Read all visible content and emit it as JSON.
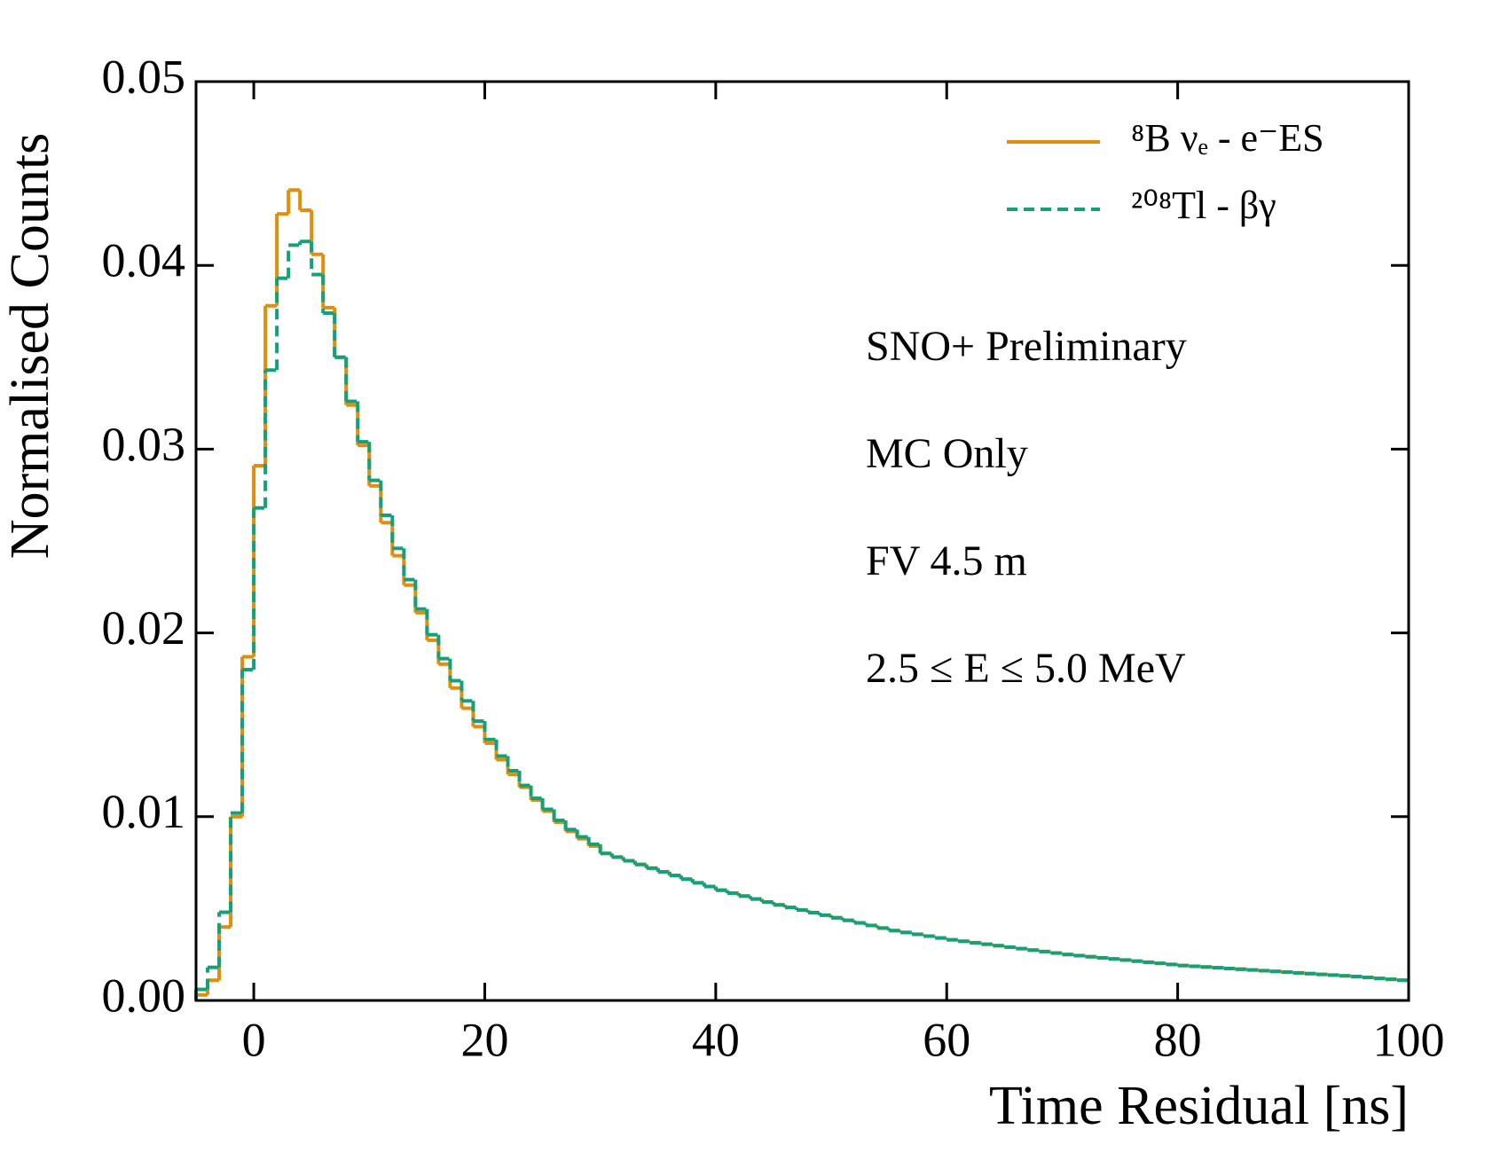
{
  "chart_data": {
    "type": "histogram",
    "xlabel": "Time Residual [ns]",
    "ylabel": "Normalised Counts",
    "annotations": [
      "SNO+ Preliminary",
      "MC Only",
      "FV 4.5 m",
      "2.5 ≤ E ≤ 5.0 MeV"
    ],
    "legend": "upper right",
    "xlim": [
      -5,
      100
    ],
    "ylim": [
      0,
      0.05
    ],
    "xticks": [
      0,
      20,
      40,
      60,
      80,
      100
    ],
    "yticks": [
      {
        "value": 0,
        "label": "0.00"
      },
      {
        "value": 0.01,
        "label": "0.01"
      },
      {
        "value": 0.02,
        "label": "0.02"
      },
      {
        "value": 0.03,
        "label": "0.03"
      },
      {
        "value": 0.04,
        "label": "0.04"
      },
      {
        "value": 0.05,
        "label": "0.05"
      }
    ],
    "bins": [
      -5,
      -4,
      -3,
      -2,
      -1,
      0,
      1,
      2,
      3,
      4,
      5,
      6,
      7,
      8,
      9,
      10,
      11,
      12,
      13,
      14,
      15,
      16,
      17,
      18,
      19,
      20,
      21,
      22,
      23,
      24,
      25,
      26,
      27,
      28,
      29,
      30,
      31,
      32,
      33,
      34,
      35,
      36,
      37,
      38,
      39,
      40,
      41,
      42,
      43,
      44,
      45,
      46,
      47,
      48,
      49,
      50,
      51,
      52,
      53,
      54,
      55,
      56,
      57,
      58,
      59,
      60,
      61,
      62,
      63,
      64,
      65,
      66,
      67,
      68,
      69,
      70,
      71,
      72,
      73,
      74,
      75,
      76,
      77,
      78,
      79,
      80,
      81,
      82,
      83,
      84,
      85,
      86,
      87,
      88,
      89,
      90,
      91,
      92,
      93,
      94,
      95,
      96,
      97,
      98,
      99,
      100
    ],
    "series": [
      {
        "name": "⁸B νₑ - e⁻ES",
        "color": "#e08f0c",
        "dashed": false,
        "values": [
          0.0003,
          0.0011,
          0.004,
          0.01,
          0.0187,
          0.0291,
          0.0378,
          0.0428,
          0.0441,
          0.043,
          0.0406,
          0.0377,
          0.035,
          0.0324,
          0.0302,
          0.028,
          0.026,
          0.0242,
          0.0226,
          0.0211,
          0.0196,
          0.0183,
          0.017,
          0.0159,
          0.0149,
          0.014,
          0.0131,
          0.0123,
          0.0116,
          0.0109,
          0.0103,
          0.0097,
          0.0092,
          0.0088,
          0.0084,
          0.008,
          0.0078,
          0.0076,
          0.0074,
          0.0072,
          0.007,
          0.0068,
          0.0066,
          0.0064,
          0.0062,
          0.006,
          0.00584,
          0.00568,
          0.00552,
          0.00536,
          0.0052,
          0.00506,
          0.00492,
          0.00478,
          0.00464,
          0.0045,
          0.00436,
          0.00422,
          0.00408,
          0.00394,
          0.0038,
          0.0037,
          0.0036,
          0.0035,
          0.0034,
          0.0033,
          0.00322,
          0.00314,
          0.00306,
          0.00298,
          0.0029,
          0.00282,
          0.00274,
          0.00266,
          0.00258,
          0.0025,
          0.00244,
          0.00238,
          0.00232,
          0.00226,
          0.0022,
          0.00214,
          0.00208,
          0.00202,
          0.00196,
          0.0019,
          0.00186,
          0.00182,
          0.00178,
          0.00174,
          0.0017,
          0.00166,
          0.00162,
          0.00158,
          0.00154,
          0.0015,
          0.00146,
          0.00142,
          0.00138,
          0.00134,
          0.0013,
          0.00125,
          0.0012,
          0.00115,
          0.0011
        ]
      },
      {
        "name": "²⁰⁸Tl - βγ",
        "color": "#14a07a",
        "dashed": true,
        "values": [
          0.0006,
          0.0018,
          0.0048,
          0.0102,
          0.018,
          0.0268,
          0.0343,
          0.0393,
          0.0411,
          0.0413,
          0.0395,
          0.0374,
          0.035,
          0.0326,
          0.0304,
          0.0283,
          0.0264,
          0.0246,
          0.0229,
          0.0213,
          0.0199,
          0.0186,
          0.0174,
          0.0163,
          0.0152,
          0.0142,
          0.0133,
          0.0125,
          0.0117,
          0.011,
          0.0104,
          0.0098,
          0.0093,
          0.0089,
          0.0085,
          0.008,
          0.0078,
          0.0076,
          0.0074,
          0.0072,
          0.007,
          0.0068,
          0.0066,
          0.0064,
          0.0062,
          0.006,
          0.00584,
          0.00568,
          0.00552,
          0.00536,
          0.0052,
          0.00506,
          0.00492,
          0.00478,
          0.00464,
          0.0045,
          0.00436,
          0.00422,
          0.00408,
          0.00394,
          0.0038,
          0.0037,
          0.0036,
          0.0035,
          0.0034,
          0.0033,
          0.00322,
          0.00314,
          0.00306,
          0.00298,
          0.0029,
          0.00282,
          0.00274,
          0.00266,
          0.00258,
          0.0025,
          0.00244,
          0.00238,
          0.00232,
          0.00226,
          0.0022,
          0.00214,
          0.00208,
          0.00202,
          0.00196,
          0.0019,
          0.00186,
          0.00182,
          0.00178,
          0.00174,
          0.0017,
          0.00166,
          0.00162,
          0.00158,
          0.00154,
          0.0015,
          0.00146,
          0.00142,
          0.00138,
          0.00134,
          0.0013,
          0.00125,
          0.0012,
          0.00115,
          0.0011
        ]
      }
    ]
  }
}
